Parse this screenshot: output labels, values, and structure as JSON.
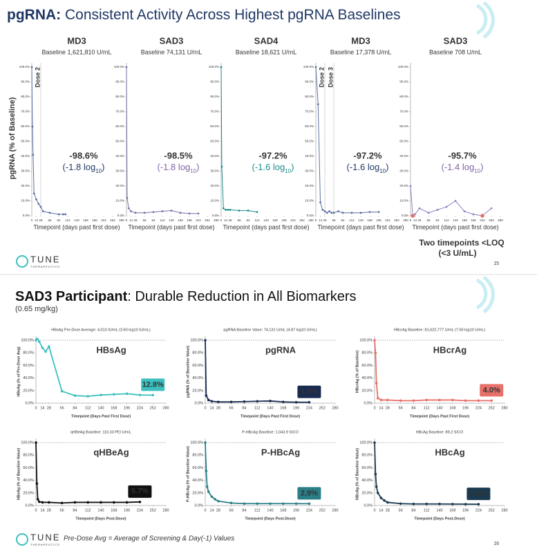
{
  "slides": [
    {
      "title_bold": "pgRNA:",
      "title": " Consistent Activity Across Highest pgRNA Baselines",
      "ylabel": "pgRNA (% of Baseline)",
      "loq_note": [
        "Two timepoints <LOQ",
        "(<3 U/mL)"
      ],
      "logo": "TUNE",
      "logo_sub": "THERAPEUTICS",
      "page": "15"
    },
    {
      "title_bold": "SAD3 Participant",
      "title": ": Durable Reduction in All Biomarkers",
      "subtitle": "(0.65 mg/kg)",
      "footnote": "Pre-Dose Avg = Average of Screening & Day(-1) Values",
      "logo": "TUNE",
      "logo_sub": "THERAPEUTICS",
      "page": "16"
    }
  ],
  "chart_data": [
    {
      "type": "line",
      "title": "MD3",
      "subtitle": "Baseline 1,621,810 U/mL",
      "annotation": "-98.6%",
      "annotation_log": [
        "(-1.8 log",
        "10",
        ")"
      ],
      "color": "#1f3864",
      "line_color": "#5a6fa0",
      "xlabel": "Timepoint (days past first dose)",
      "x": [
        0,
        2,
        4,
        7,
        14,
        21,
        28,
        35,
        56,
        84,
        98,
        105
      ],
      "values": [
        100,
        60,
        41,
        15,
        11,
        8,
        6,
        3,
        2,
        1,
        1,
        1
      ],
      "dose_lines": [
        {
          "x": 28,
          "label": "Dose 2"
        }
      ],
      "xlim": [
        0,
        280
      ],
      "xticks": [
        0,
        14,
        28,
        56,
        84,
        112,
        140,
        168,
        196,
        224,
        252,
        280
      ],
      "ylim": [
        0,
        100
      ],
      "yticks": [
        {
          "value": 0,
          "label": "0.0%"
        },
        {
          "value": 10,
          "label": "10.0%"
        },
        {
          "value": 20,
          "label": "20.0%"
        },
        {
          "value": 30,
          "label": "30.0%"
        },
        {
          "value": 40,
          "label": "40.0%"
        },
        {
          "value": 50,
          "label": "50.0%"
        },
        {
          "value": 60,
          "label": "60.0%"
        },
        {
          "value": 70,
          "label": "70.0%"
        },
        {
          "value": 80,
          "label": "80.0%"
        },
        {
          "value": 90,
          "label": "90.0%"
        },
        {
          "value": 100,
          "label": "100.0%"
        }
      ]
    },
    {
      "type": "line",
      "title": "SAD3",
      "subtitle": "Baseline 74,131 U/mL",
      "annotation": "-98.5%",
      "annotation_log": [
        "(-1.8 log",
        "10",
        ")"
      ],
      "color": "#8064a2",
      "line_color": "#7a6fa5",
      "xlabel": "Timepoint (days past first dose)",
      "x": [
        0,
        2,
        7,
        14,
        28,
        56,
        84,
        112,
        140,
        168,
        196,
        224
      ],
      "values": [
        100,
        12,
        5,
        3,
        2,
        2,
        2.5,
        3,
        3.5,
        2,
        1.5,
        1.5
      ],
      "xlim": [
        0,
        280
      ],
      "xticks": [
        0,
        14,
        28,
        56,
        84,
        112,
        140,
        168,
        196,
        224,
        252,
        280
      ],
      "ylim": [
        0,
        100
      ],
      "yticks": [
        {
          "value": 0,
          "label": "0.0%"
        },
        {
          "value": 10,
          "label": "10.0%"
        },
        {
          "value": 20,
          "label": "20.0%"
        },
        {
          "value": 30,
          "label": "30.0%"
        },
        {
          "value": 40,
          "label": "40.0%"
        },
        {
          "value": 50,
          "label": "50.0%"
        },
        {
          "value": 60,
          "label": "60.0%"
        },
        {
          "value": 70,
          "label": "70.0%"
        },
        {
          "value": 80,
          "label": "80.0%"
        },
        {
          "value": 90,
          "label": "90.0%"
        },
        {
          "value": 100,
          "label": "100.0%"
        }
      ]
    },
    {
      "type": "line",
      "title": "SAD4",
      "subtitle": "Baseline 18,621 U/mL",
      "annotation": "-97.2%",
      "annotation_log": [
        "(-1.6 log",
        "10",
        ")"
      ],
      "color": "#1f8a8a",
      "line_color": "#1f8a8a",
      "xlabel": "Timepoint (days past first dose)",
      "x": [
        0,
        2,
        7,
        14,
        21,
        28,
        56,
        84,
        112
      ],
      "values": [
        100,
        33,
        5,
        4,
        4,
        4,
        3.5,
        3.5,
        2.5
      ],
      "xlim": [
        0,
        280
      ],
      "xticks": [
        0,
        14,
        28,
        56,
        84,
        112,
        140,
        168,
        196,
        224,
        252,
        280
      ],
      "ylim": [
        0,
        100
      ],
      "yticks": [
        {
          "value": 0,
          "label": "0.0%"
        },
        {
          "value": 10,
          "label": "10.0%"
        },
        {
          "value": 20,
          "label": "20.0%"
        },
        {
          "value": 30,
          "label": "30.0%"
        },
        {
          "value": 40,
          "label": "40.0%"
        },
        {
          "value": 50,
          "label": "50.0%"
        },
        {
          "value": 60,
          "label": "60.0%"
        },
        {
          "value": 70,
          "label": "70.0%"
        },
        {
          "value": 80,
          "label": "80.0%"
        },
        {
          "value": 90,
          "label": "90.0%"
        },
        {
          "value": 100,
          "label": "100.0%"
        }
      ]
    },
    {
      "type": "line",
      "title": "MD3",
      "subtitle": "Baseline 17,378 U/mL",
      "annotation": "-97.2%",
      "annotation_log": [
        "(-1.6 log",
        "10",
        ")"
      ],
      "color": "#1f3864",
      "line_color": "#5a6fa0",
      "xlabel": "Timepoint (days past first dose)",
      "x": [
        0,
        7,
        14,
        21,
        28,
        35,
        42,
        49,
        56,
        70,
        84,
        112,
        140,
        168,
        196
      ],
      "values": [
        100,
        75,
        9,
        4,
        3,
        2,
        3,
        2,
        2,
        3,
        2,
        2,
        2,
        2.5,
        2.5
      ],
      "dose_lines": [
        {
          "x": 28,
          "label": "Dose 2"
        },
        {
          "x": 56,
          "label": "Dose 3"
        }
      ],
      "xlim": [
        0,
        280
      ],
      "xticks": [
        0,
        14,
        28,
        56,
        84,
        112,
        140,
        168,
        196,
        224,
        252,
        280
      ],
      "ylim": [
        0,
        100
      ],
      "yticks": [
        {
          "value": 0,
          "label": "0.0%"
        },
        {
          "value": 10,
          "label": "10.0%"
        },
        {
          "value": 20,
          "label": "20.0%"
        },
        {
          "value": 30,
          "label": "30.0%"
        },
        {
          "value": 40,
          "label": "40.0%"
        },
        {
          "value": 50,
          "label": "50.0%"
        },
        {
          "value": 60,
          "label": "60.0%"
        },
        {
          "value": 70,
          "label": "70.0%"
        },
        {
          "value": 80,
          "label": "80.0%"
        },
        {
          "value": 90,
          "label": "90.0%"
        },
        {
          "value": 100,
          "label": "100.0%"
        }
      ]
    },
    {
      "type": "line",
      "title": "SAD3",
      "subtitle": "Baseline 708 U/mL",
      "annotation": "-95.7%",
      "annotation_log": [
        "(-1.4 log",
        "10",
        ")"
      ],
      "color": "#8064a2",
      "line_color": "#8a7fc0",
      "xlabel": "Timepoint (days past first dose)",
      "x": [
        0,
        7,
        14,
        28,
        56,
        84,
        112,
        140,
        168,
        196,
        224,
        252
      ],
      "values": [
        20,
        0,
        1,
        5,
        2,
        4,
        6,
        10,
        3,
        1,
        0,
        5
      ],
      "point_colors": [
        "#8a7fc0",
        "#e8706a",
        "#8a7fc0",
        "#8a7fc0",
        "#8a7fc0",
        "#8a7fc0",
        "#8a7fc0",
        "#8a7fc0",
        "#8a7fc0",
        "#8a7fc0",
        "#e8706a",
        "#8a7fc0"
      ],
      "xlim": [
        0,
        280
      ],
      "xticks": [
        0,
        14,
        28,
        56,
        84,
        112,
        140,
        168,
        196,
        224,
        252,
        280
      ],
      "ylim": [
        0,
        100
      ],
      "yticks": [
        {
          "value": 0,
          "label": "0.0%"
        },
        {
          "value": 10,
          "label": "10.0%"
        },
        {
          "value": 20,
          "label": "20.0%"
        },
        {
          "value": 30,
          "label": "30.0%"
        },
        {
          "value": 40,
          "label": "40.0%"
        },
        {
          "value": 50,
          "label": "50.0%"
        },
        {
          "value": 60,
          "label": "60.0%"
        },
        {
          "value": 70,
          "label": "70.0%"
        },
        {
          "value": 80,
          "label": "80.0%"
        },
        {
          "value": 90,
          "label": "90.0%"
        },
        {
          "value": 100,
          "label": "100.0%"
        }
      ]
    },
    {
      "type": "line",
      "title": "HBsAg",
      "subtitle": "HBsAg Pre-Dose Average: 4,013 IU/mL (3.60 log10 IU/mL)",
      "ylabel": "HBsAg (% of Pre-Dose Avg)",
      "xlabel": "Timepoint (Days Past First Dose)",
      "color": "#3dbfbf",
      "hline": 100,
      "x": [
        0,
        3,
        7,
        14,
        21,
        28,
        56,
        84,
        112,
        140,
        168,
        196,
        224,
        252
      ],
      "values": [
        100,
        102,
        98,
        88,
        82,
        90,
        19,
        12,
        11,
        13,
        14,
        15,
        13,
        12.8
      ],
      "value_labels": [
        null,
        null,
        null,
        null,
        null,
        null,
        null,
        null,
        null,
        null,
        null,
        null,
        null,
        "12.8%"
      ],
      "xlim": [
        0,
        280
      ],
      "xticks": [
        0,
        14,
        28,
        56,
        84,
        112,
        140,
        168,
        196,
        224,
        252,
        280
      ],
      "ylim": [
        0,
        100
      ],
      "yticks": [
        {
          "value": 0,
          "label": "0.0%"
        },
        {
          "value": 20,
          "label": "20.0%"
        },
        {
          "value": 40,
          "label": "40.0%"
        },
        {
          "value": 60,
          "label": "60.0%"
        },
        {
          "value": 80,
          "label": "80.0%"
        },
        {
          "value": 100,
          "label": "100.0%"
        }
      ]
    },
    {
      "type": "line",
      "title": "pgRNA",
      "subtitle": "pgRNA Baseline Value: 74,131 U/mL (4.87 log10 U/mL)",
      "ylabel": "pgRNA (% of Baseline Value)",
      "xlabel": "Timepoint (Days Past First Dose)",
      "color": "#1a2a50",
      "hline": 100,
      "x": [
        0,
        2,
        7,
        14,
        28,
        56,
        84,
        112,
        140,
        168,
        196,
        224
      ],
      "values": [
        100,
        12,
        5,
        3,
        2,
        2,
        2.5,
        3,
        3.5,
        2,
        1.5,
        1.5
      ],
      "value_labels": [
        null,
        null,
        null,
        null,
        null,
        null,
        null,
        null,
        null,
        null,
        null,
        "1.5%"
      ],
      "xlim": [
        0,
        280
      ],
      "xticks": [
        0,
        14,
        28,
        56,
        84,
        112,
        140,
        168,
        196,
        224,
        252,
        280
      ],
      "ylim": [
        0,
        100
      ],
      "yticks": [
        {
          "value": 0,
          "label": "0.0%"
        },
        {
          "value": 20,
          "label": "20.0%"
        },
        {
          "value": 40,
          "label": "40.0%"
        },
        {
          "value": 60,
          "label": "60.0%"
        },
        {
          "value": 80,
          "label": "80.0%"
        },
        {
          "value": 100,
          "label": "100.0%"
        }
      ]
    },
    {
      "type": "line",
      "title": "HBcrAg",
      "subtitle": "HBcrAg Baseline: 81,622,777 U/mL (7.50 log10 U/mL)",
      "ylabel": "HBcrAg (% of Baseline)",
      "xlabel": "Timepoint (Days Past First Dose)",
      "color": "#e8706a",
      "hline": 100,
      "x": [
        0,
        2,
        4,
        7,
        14,
        28,
        56,
        84,
        112,
        140,
        168,
        196,
        224,
        252
      ],
      "values": [
        100,
        80,
        32,
        8,
        5,
        5,
        4,
        4,
        5,
        5,
        5,
        4,
        4,
        4.0
      ],
      "value_labels": [
        null,
        null,
        null,
        null,
        null,
        null,
        null,
        null,
        null,
        null,
        null,
        null,
        null,
        "4.0%"
      ],
      "xlim": [
        0,
        280
      ],
      "xticks": [
        0,
        14,
        28,
        56,
        84,
        112,
        140,
        168,
        196,
        224,
        252,
        280
      ],
      "ylim": [
        0,
        100
      ],
      "yticks": [
        {
          "value": 0,
          "label": "0.0%"
        },
        {
          "value": 20,
          "label": "20.0%"
        },
        {
          "value": 40,
          "label": "40.0%"
        },
        {
          "value": 60,
          "label": "60.0%"
        },
        {
          "value": 80,
          "label": "80.0%"
        },
        {
          "value": 100,
          "label": "100.0%"
        }
      ]
    },
    {
      "type": "line",
      "title": "qHBeAg",
      "subtitle": "qHBeAg Baseline: 110.33 PEI U/mL",
      "ylabel": "HBeAg (% of Baseline Value)",
      "xlabel": "Timepoint (Days Post-Dose)",
      "color": "#111111",
      "hline": 100,
      "x": [
        0,
        2,
        4,
        7,
        14,
        28,
        56,
        84,
        112,
        140,
        168,
        196,
        224
      ],
      "values": [
        100,
        35,
        10,
        6,
        5,
        5,
        4,
        5,
        5,
        5,
        5,
        5,
        5.7
      ],
      "value_labels": [
        null,
        null,
        null,
        null,
        null,
        null,
        null,
        null,
        null,
        null,
        null,
        null,
        "5.7%"
      ],
      "xlim": [
        0,
        280
      ],
      "xticks": [
        0,
        14,
        28,
        56,
        84,
        112,
        140,
        168,
        196,
        224,
        252,
        280
      ],
      "ylim": [
        0,
        100
      ],
      "yticks": [
        {
          "value": 0,
          "label": "0.0%"
        },
        {
          "value": 20,
          "label": "20.0%"
        },
        {
          "value": 40,
          "label": "40.0%"
        },
        {
          "value": 60,
          "label": "60.0%"
        },
        {
          "value": 80,
          "label": "80.0%"
        },
        {
          "value": 100,
          "label": "100.0%"
        }
      ]
    },
    {
      "type": "line",
      "title": "P-HBcAg",
      "subtitle": "P-HBcAg Baseline: 1,043.9 S/CO",
      "ylabel": "P-HBcAg (% of Baseline Value)",
      "xlabel": "Timepoint (Days Post-Dose)",
      "color": "#2a7f86",
      "hline": 100,
      "x": [
        0,
        2,
        4,
        7,
        14,
        21,
        28,
        56,
        84,
        112,
        140,
        168,
        196,
        224
      ],
      "values": [
        100,
        55,
        30,
        22,
        14,
        10,
        7,
        4,
        3,
        3,
        3,
        3,
        3,
        2.9
      ],
      "value_labels": [
        null,
        null,
        null,
        null,
        null,
        null,
        null,
        null,
        null,
        null,
        null,
        null,
        null,
        "2.9%"
      ],
      "xlim": [
        0,
        280
      ],
      "xticks": [
        0,
        14,
        28,
        56,
        84,
        112,
        140,
        168,
        196,
        224,
        252,
        280
      ],
      "ylim": [
        0,
        100
      ],
      "yticks": [
        {
          "value": 0,
          "label": "0.0%"
        },
        {
          "value": 20,
          "label": "20.0%"
        },
        {
          "value": 40,
          "label": "40.0%"
        },
        {
          "value": 60,
          "label": "60.0%"
        },
        {
          "value": 80,
          "label": "80.0%"
        },
        {
          "value": 100,
          "label": "100.0%"
        }
      ]
    },
    {
      "type": "line",
      "title": "HBcAg",
      "subtitle": "HBcAg Baseline: 89.2 S/CO",
      "ylabel": "HBcAg (% of Baseline Value)",
      "xlabel": "Timepoint (Days Post-Dose)",
      "color": "#1a3a50",
      "hline": 100,
      "x": [
        0,
        2,
        4,
        7,
        14,
        21,
        28,
        56,
        84,
        112,
        140,
        168,
        196,
        224
      ],
      "values": [
        100,
        50,
        30,
        20,
        12,
        8,
        5,
        3,
        2.5,
        2.5,
        2.5,
        2.3,
        2.2,
        2.1
      ],
      "value_labels": [
        null,
        null,
        null,
        null,
        null,
        null,
        null,
        null,
        null,
        null,
        null,
        null,
        null,
        "2.1%"
      ],
      "xlim": [
        0,
        280
      ],
      "xticks": [
        0,
        14,
        28,
        56,
        84,
        112,
        140,
        168,
        196,
        224,
        252,
        280
      ],
      "ylim": [
        0,
        100
      ],
      "yticks": [
        {
          "value": 0,
          "label": "0.0%"
        },
        {
          "value": 20,
          "label": "20.0%"
        },
        {
          "value": 40,
          "label": "40.0%"
        },
        {
          "value": 60,
          "label": "60.0%"
        },
        {
          "value": 80,
          "label": "80.0%"
        },
        {
          "value": 100,
          "label": "100.0%"
        }
      ]
    }
  ]
}
